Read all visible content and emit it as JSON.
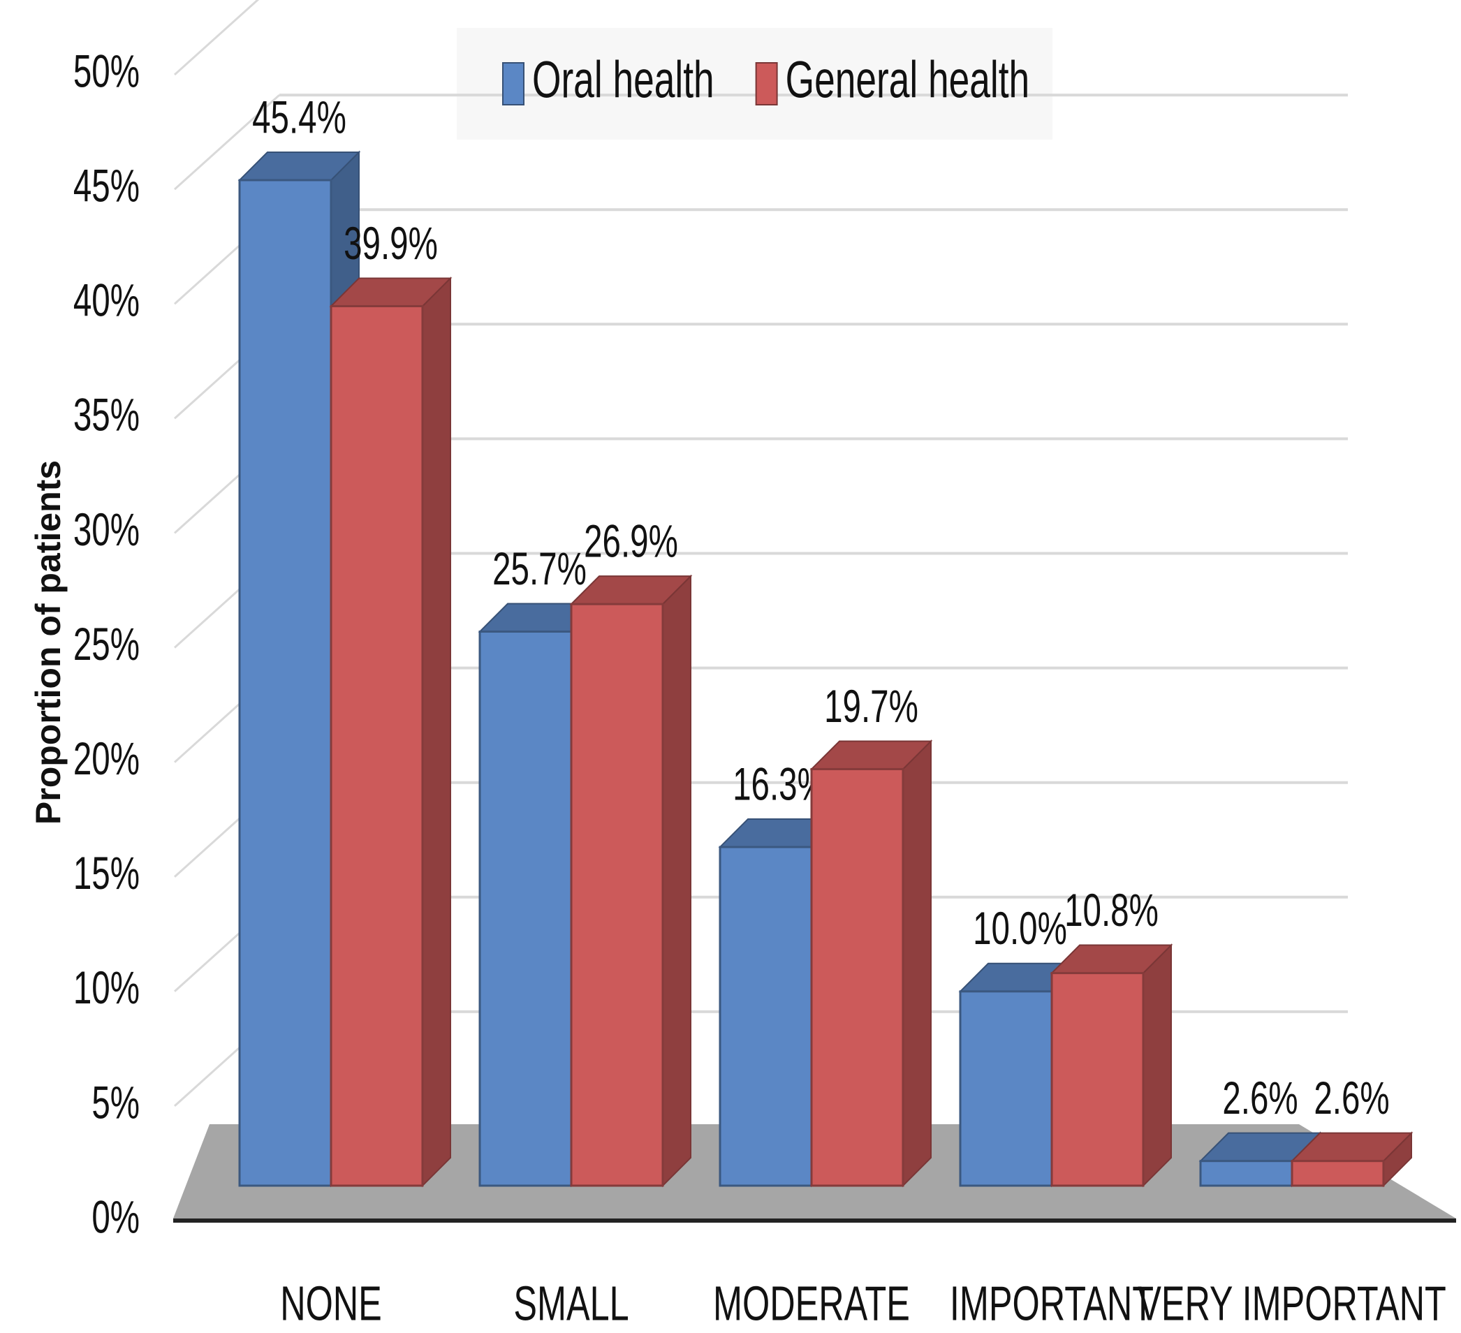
{
  "chart_data": {
    "type": "bar3d",
    "y_label": "Proportion of patients",
    "categories": [
      "NONE",
      "SMALL",
      "MODERATE",
      "IMPORTANT",
      "VERY IMPORTANT"
    ],
    "series": [
      {
        "name": "Oral health",
        "color": "#5b87c5",
        "values": [
          45.4,
          25.7,
          16.3,
          10.0,
          2.6
        ],
        "value_labels": [
          "45.4%",
          "25.7%",
          "16.3%",
          "10.0%",
          "2.6%"
        ]
      },
      {
        "name": "General health",
        "color": "#cc5a5a",
        "values": [
          39.9,
          26.9,
          19.7,
          10.8,
          2.6
        ],
        "value_labels": [
          "39.9%",
          "26.9%",
          "19.7%",
          "10.8%",
          "2.6%"
        ]
      }
    ],
    "ylim": [
      0,
      50
    ],
    "yticks": [
      {
        "value": 0,
        "label": "0%"
      },
      {
        "value": 5,
        "label": "5%"
      },
      {
        "value": 10,
        "label": "10%"
      },
      {
        "value": 15,
        "label": "15%"
      },
      {
        "value": 20,
        "label": "20%"
      },
      {
        "value": 25,
        "label": "25%"
      },
      {
        "value": 30,
        "label": "30%"
      },
      {
        "value": 35,
        "label": "35%"
      },
      {
        "value": 40,
        "label": "40%"
      },
      {
        "value": 45,
        "label": "45%"
      },
      {
        "value": 50,
        "label": "50%"
      }
    ],
    "grid": true,
    "legend": "top"
  }
}
